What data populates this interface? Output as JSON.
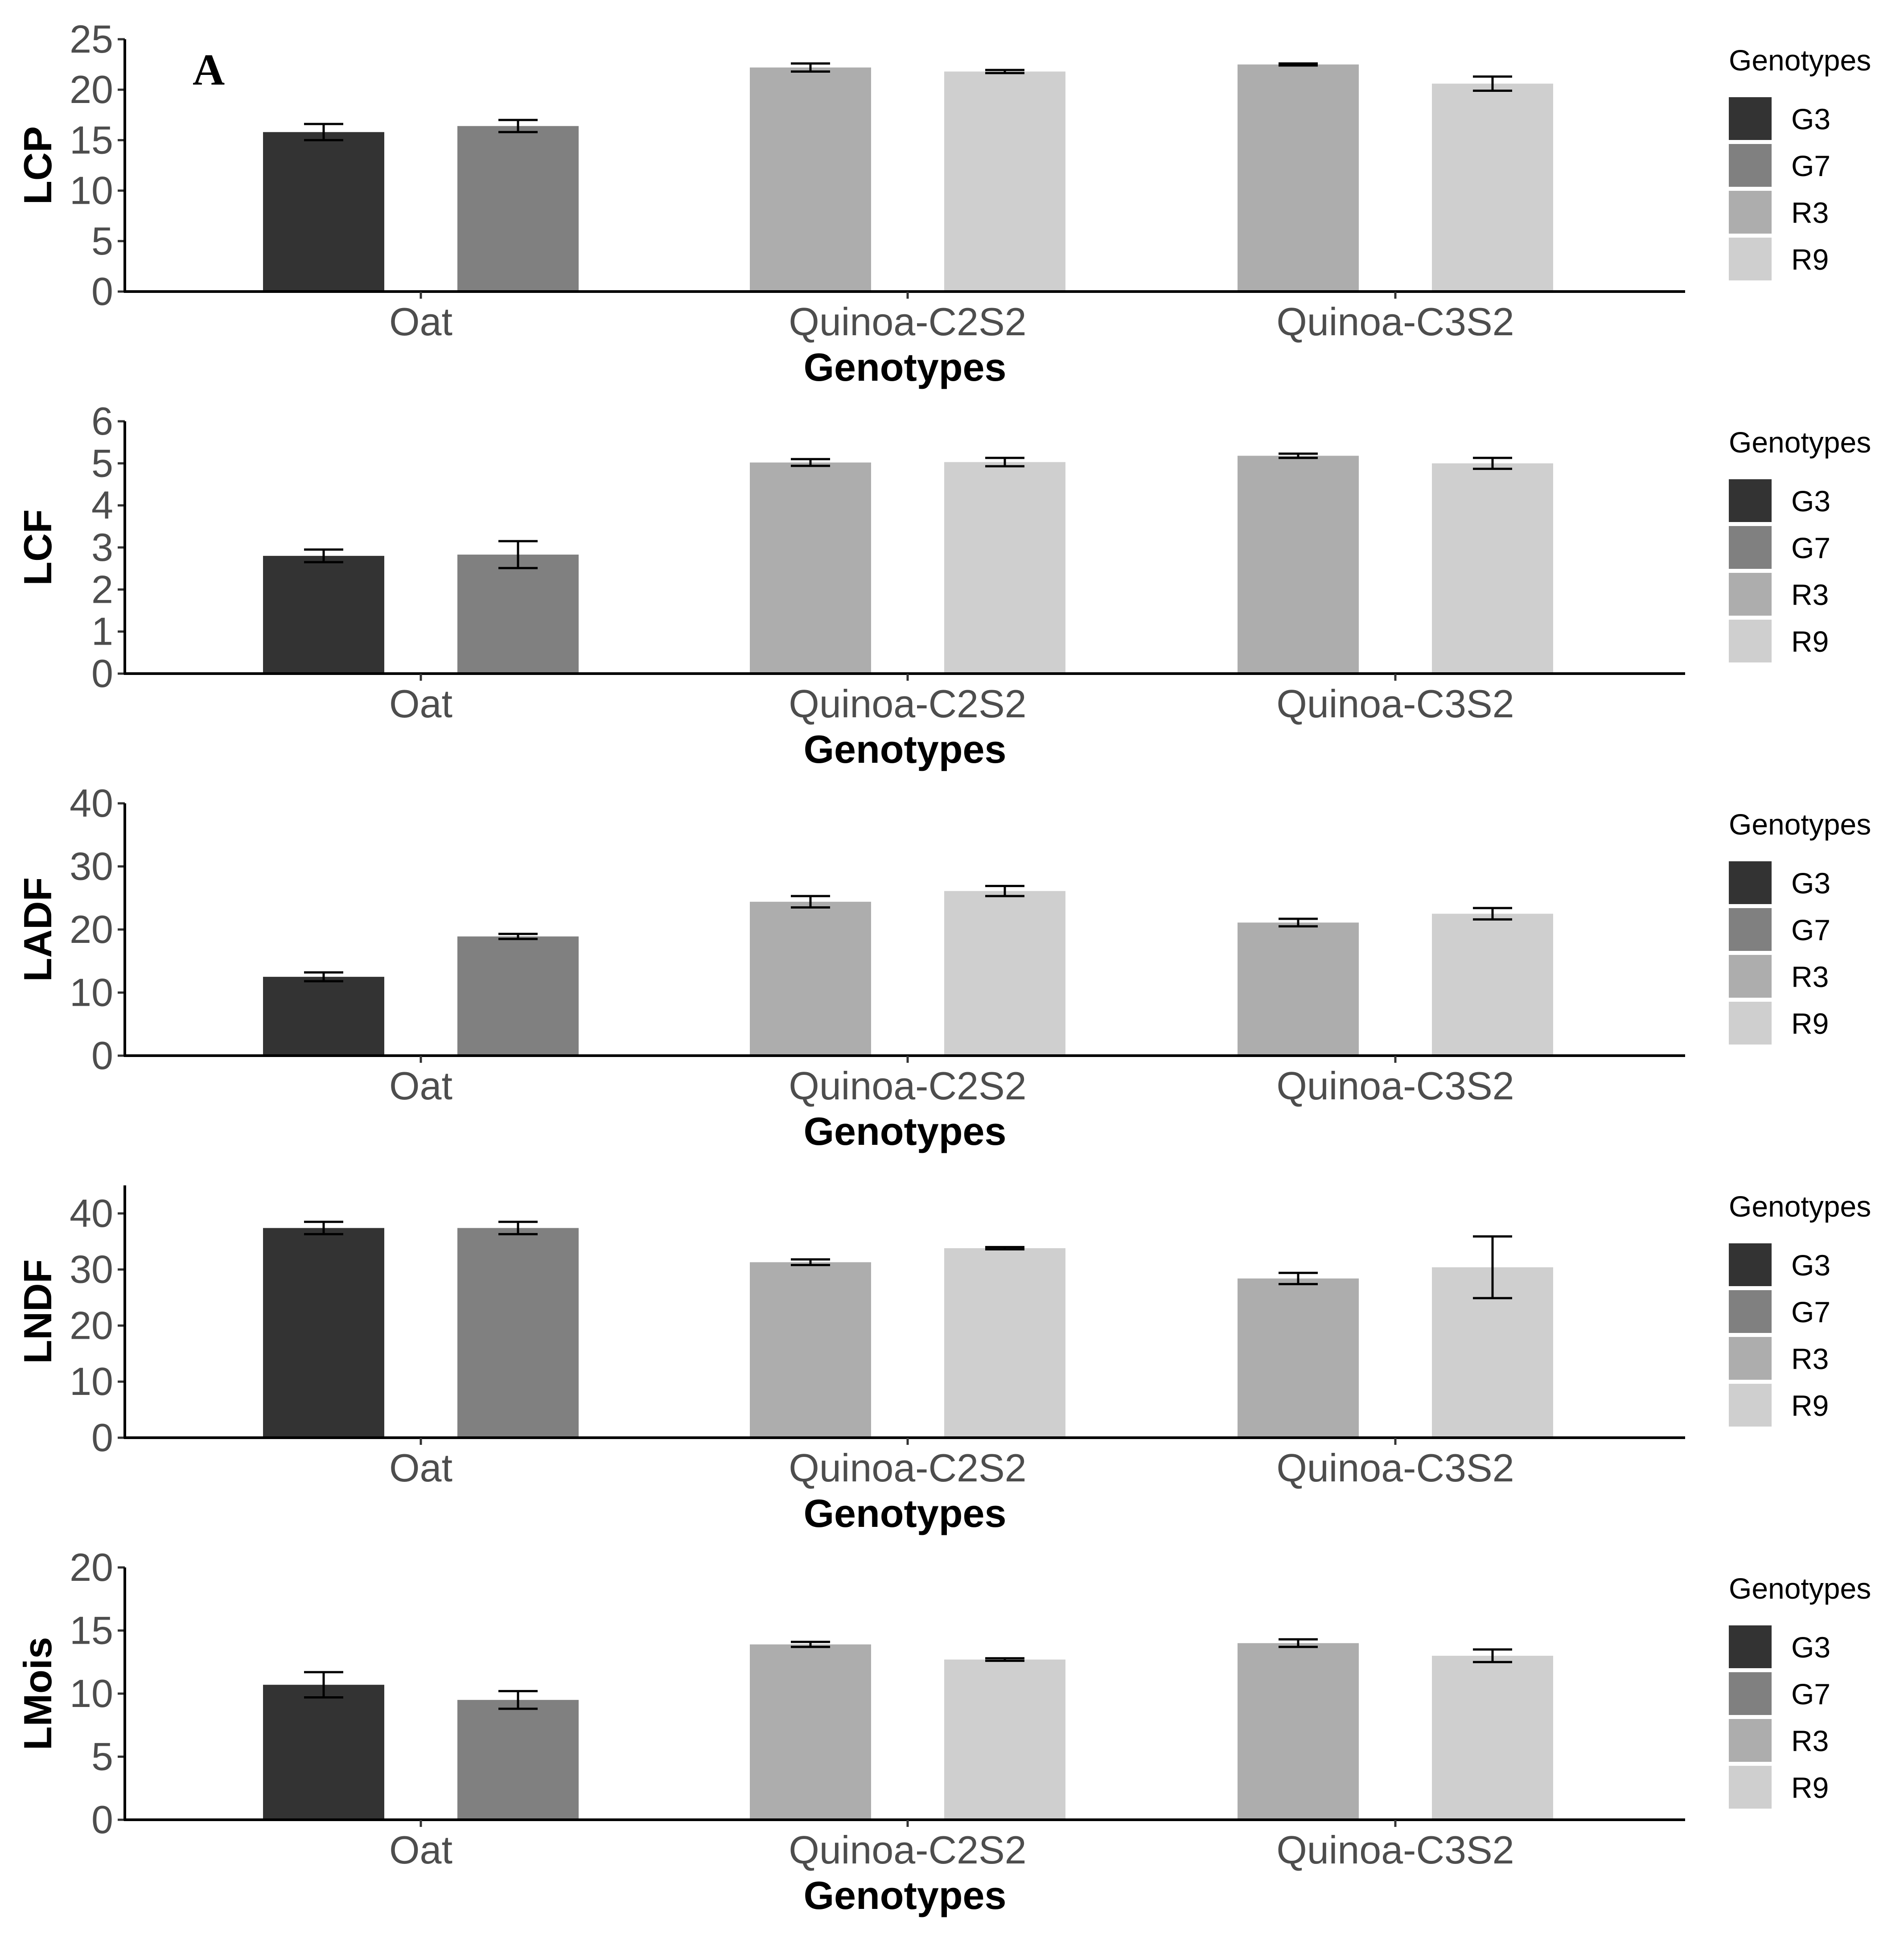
{
  "figure_label": "A",
  "chart_data": [
    {
      "type": "bar",
      "ylabel": "LCP",
      "xlabel": "Genotypes",
      "categories": [
        "Oat",
        "Quinoa-C2S2",
        "Quinoa-C3S2"
      ],
      "ylim": [
        0,
        25
      ],
      "yticks": [
        0,
        5,
        10,
        15,
        20,
        25
      ],
      "legend_title": "Genotypes",
      "bars": [
        {
          "category": "Oat",
          "genotype": "G3",
          "value": 15.8,
          "err": 0.8
        },
        {
          "category": "Oat",
          "genotype": "G7",
          "value": 16.4,
          "err": 0.6
        },
        {
          "category": "Quinoa-C2S2",
          "genotype": "R3",
          "value": 22.2,
          "err": 0.4
        },
        {
          "category": "Quinoa-C2S2",
          "genotype": "R9",
          "value": 21.8,
          "err": 0.15
        },
        {
          "category": "Quinoa-C3S2",
          "genotype": "R3",
          "value": 22.5,
          "err": 0.1
        },
        {
          "category": "Quinoa-C3S2",
          "genotype": "R9",
          "value": 20.6,
          "err": 0.7
        }
      ]
    },
    {
      "type": "bar",
      "ylabel": "LCF",
      "xlabel": "Genotypes",
      "categories": [
        "Oat",
        "Quinoa-C2S2",
        "Quinoa-C3S2"
      ],
      "ylim": [
        0,
        6
      ],
      "yticks": [
        0,
        1,
        2,
        3,
        4,
        5,
        6
      ],
      "legend_title": "Genotypes",
      "bars": [
        {
          "category": "Oat",
          "genotype": "G3",
          "value": 2.8,
          "err": 0.15
        },
        {
          "category": "Oat",
          "genotype": "G7",
          "value": 2.83,
          "err": 0.32
        },
        {
          "category": "Quinoa-C2S2",
          "genotype": "R3",
          "value": 5.02,
          "err": 0.08
        },
        {
          "category": "Quinoa-C2S2",
          "genotype": "R9",
          "value": 5.03,
          "err": 0.1
        },
        {
          "category": "Quinoa-C3S2",
          "genotype": "R3",
          "value": 5.18,
          "err": 0.05
        },
        {
          "category": "Quinoa-C3S2",
          "genotype": "R9",
          "value": 5.0,
          "err": 0.13
        }
      ]
    },
    {
      "type": "bar",
      "ylabel": "LADF",
      "xlabel": "Genotypes",
      "categories": [
        "Oat",
        "Quinoa-C2S2",
        "Quinoa-C3S2"
      ],
      "ylim": [
        0,
        40
      ],
      "yticks": [
        0,
        10,
        20,
        30,
        40
      ],
      "legend_title": "Genotypes",
      "bars": [
        {
          "category": "Oat",
          "genotype": "G3",
          "value": 12.5,
          "err": 0.7
        },
        {
          "category": "Oat",
          "genotype": "G7",
          "value": 18.9,
          "err": 0.4
        },
        {
          "category": "Quinoa-C2S2",
          "genotype": "R3",
          "value": 24.4,
          "err": 0.9
        },
        {
          "category": "Quinoa-C2S2",
          "genotype": "R9",
          "value": 26.1,
          "err": 0.8
        },
        {
          "category": "Quinoa-C3S2",
          "genotype": "R3",
          "value": 21.1,
          "err": 0.6
        },
        {
          "category": "Quinoa-C3S2",
          "genotype": "R9",
          "value": 22.5,
          "err": 0.9
        }
      ]
    },
    {
      "type": "bar",
      "ylabel": "LNDF",
      "xlabel": "Genotypes",
      "categories": [
        "Oat",
        "Quinoa-C2S2",
        "Quinoa-C3S2"
      ],
      "ylim": [
        0,
        45
      ],
      "yticks": [
        0,
        10,
        20,
        30,
        40
      ],
      "legend_title": "Genotypes",
      "bars": [
        {
          "category": "Oat",
          "genotype": "G3",
          "value": 37.4,
          "err": 1.1
        },
        {
          "category": "Oat",
          "genotype": "G7",
          "value": 37.4,
          "err": 1.1
        },
        {
          "category": "Quinoa-C2S2",
          "genotype": "R3",
          "value": 31.3,
          "err": 0.5
        },
        {
          "category": "Quinoa-C2S2",
          "genotype": "R9",
          "value": 33.8,
          "err": 0.2
        },
        {
          "category": "Quinoa-C3S2",
          "genotype": "R3",
          "value": 28.4,
          "err": 1.0
        },
        {
          "category": "Quinoa-C3S2",
          "genotype": "R9",
          "value": 30.4,
          "err": 5.5
        }
      ]
    },
    {
      "type": "bar",
      "ylabel": "LMois",
      "xlabel": "Genotypes",
      "categories": [
        "Oat",
        "Quinoa-C2S2",
        "Quinoa-C3S2"
      ],
      "ylim": [
        0,
        20
      ],
      "yticks": [
        0,
        5,
        10,
        15,
        20
      ],
      "legend_title": "Genotypes",
      "bars": [
        {
          "category": "Oat",
          "genotype": "G3",
          "value": 10.7,
          "err": 1.0
        },
        {
          "category": "Oat",
          "genotype": "G7",
          "value": 9.5,
          "err": 0.7
        },
        {
          "category": "Quinoa-C2S2",
          "genotype": "R3",
          "value": 13.9,
          "err": 0.2
        },
        {
          "category": "Quinoa-C2S2",
          "genotype": "R9",
          "value": 12.7,
          "err": 0.1
        },
        {
          "category": "Quinoa-C3S2",
          "genotype": "R3",
          "value": 14.0,
          "err": 0.3
        },
        {
          "category": "Quinoa-C3S2",
          "genotype": "R9",
          "value": 13.0,
          "err": 0.5
        }
      ]
    }
  ],
  "legend": [
    {
      "label": "G3",
      "color": "#333333"
    },
    {
      "label": "G7",
      "color": "#808080"
    },
    {
      "label": "R3",
      "color": "#adadad"
    },
    {
      "label": "R9",
      "color": "#cfcfcf"
    }
  ]
}
